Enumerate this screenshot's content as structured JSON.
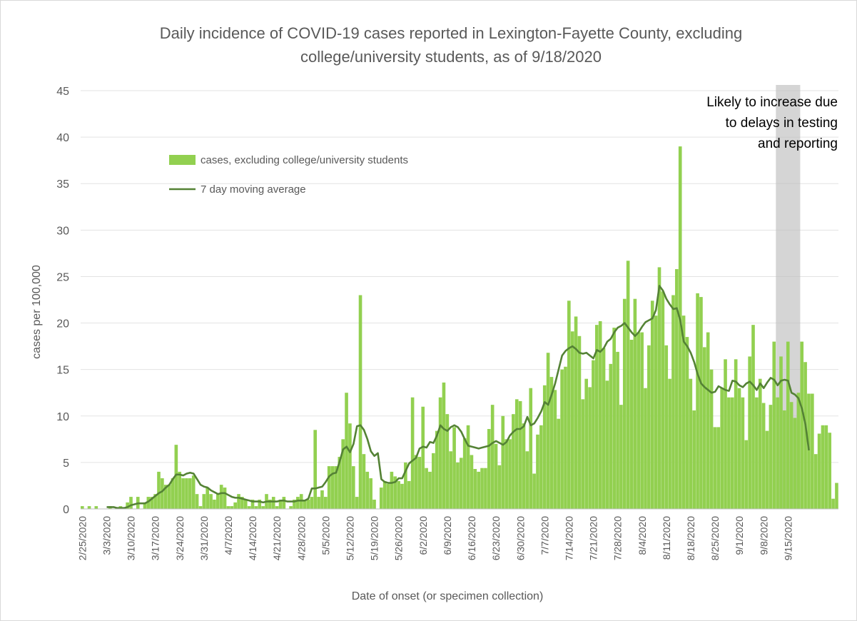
{
  "chart_data": {
    "type": "bar",
    "title_line1": "Daily incidence of COVID-19 cases reported in Lexington-Fayette County, excluding",
    "title_line2": "college/university students, as of 9/18/2020",
    "xlabel": "Date of onset (or specimen collection)",
    "ylabel": "cases per 100,000",
    "ylim": [
      0,
      45
    ],
    "yticks": [
      0,
      5,
      10,
      15,
      20,
      25,
      30,
      35,
      40,
      45
    ],
    "start_date": "2/25/2020",
    "x_ticks": [
      "2/25/2020",
      "3/3/2020",
      "3/10/2020",
      "3/17/2020",
      "3/24/2020",
      "3/31/2020",
      "4/7/2020",
      "4/14/2020",
      "4/21/2020",
      "4/28/2020",
      "5/5/2020",
      "5/12/2020",
      "5/19/2020",
      "5/26/2020",
      "6/2/2020",
      "6/9/2020",
      "6/16/2020",
      "6/23/2020",
      "6/30/2020",
      "7/7/2020",
      "7/14/2020",
      "7/21/2020",
      "7/28/2020",
      "8/4/2020",
      "8/11/2020",
      "8/18/2020",
      "8/25/2020",
      "9/1/2020",
      "9/8/2020",
      "9/15/2020"
    ],
    "legend": {
      "bars": "cases, excluding college/university students",
      "line": "7 day moving average"
    },
    "annotation": [
      "Likely to increase due",
      "to delays in testing",
      "and reporting"
    ],
    "shaded_region": {
      "from": "9/12/2020",
      "to": "9/18/2020"
    },
    "colors": {
      "bars": "#92d050",
      "line": "#548235",
      "shade": "#bfbfbf",
      "text": "#595959",
      "grid": "#d9d9d9"
    },
    "series": [
      {
        "name": "cases, excluding college/university students",
        "values": [
          0.3,
          0,
          0.3,
          0,
          0.3,
          0,
          0,
          0,
          0.3,
          0,
          0,
          0.3,
          0,
          0.7,
          1.3,
          0,
          1.3,
          0,
          0.7,
          1.3,
          1.3,
          1.6,
          4,
          3.3,
          2.6,
          2.6,
          3.3,
          6.9,
          4,
          3.3,
          3.3,
          3.3,
          3.6,
          1.6,
          0.3,
          1.6,
          2.3,
          1.6,
          1,
          1.6,
          2.6,
          2.3,
          0.3,
          0.3,
          0.7,
          1.6,
          1.3,
          1,
          0.3,
          1,
          0.3,
          1,
          0.3,
          1.6,
          1,
          1.3,
          0.3,
          1,
          1.3,
          0,
          0.3,
          1,
          1.3,
          1.6,
          1,
          1,
          1.3,
          8.5,
          1.3,
          2,
          1.3,
          4.6,
          4.6,
          4.6,
          5.6,
          7.5,
          12.5,
          9.2,
          4.6,
          1.3,
          23,
          5.9,
          4,
          3.3,
          1,
          0,
          2.3,
          3,
          2.7,
          4,
          3.5,
          3,
          2.7,
          5,
          3,
          12,
          5.8,
          5.6,
          11,
          4.4,
          4,
          6,
          8.4,
          12,
          13.6,
          10.2,
          6.2,
          8.8,
          5,
          5.5,
          7.6,
          9,
          5.8,
          4.3,
          4,
          4.4,
          4.4,
          8.6,
          11.2,
          7,
          4.7,
          10,
          7.5,
          7.5,
          10.2,
          11.8,
          11.6,
          9.2,
          6.2,
          13,
          3.8,
          8,
          9,
          13.3,
          16.8,
          14.2,
          12.8,
          9.7,
          15,
          15.3,
          22.4,
          19.1,
          20.7,
          18.6,
          11.8,
          14,
          13.1,
          16,
          19.8,
          20.2,
          17.3,
          13.8,
          15.6,
          19.5,
          16.9,
          11.2,
          22.6,
          26.7,
          18.2,
          22.6,
          19,
          19,
          13,
          17.6,
          22.4,
          20.8,
          26,
          23.4,
          17.6,
          14,
          23,
          25.8,
          39,
          20.8,
          18.5,
          14,
          10.6,
          23.2,
          22.8,
          17.4,
          19,
          15,
          8.8,
          8.8,
          13,
          16.1,
          12,
          12,
          16.1,
          13,
          12,
          7.4,
          16.4,
          19.8,
          12,
          14,
          11.4,
          8.4,
          11.2,
          18,
          12,
          16.4,
          10.6,
          18,
          11.5,
          9.8,
          12.5,
          18,
          15.8,
          12.4,
          12.4,
          5.9,
          8.1,
          9,
          9,
          8.2,
          1.1,
          2.8
        ]
      },
      {
        "name": "7 day moving average",
        "values": [
          null,
          null,
          null,
          null,
          null,
          null,
          null,
          0.2,
          0.2,
          0.2,
          0.1,
          0.1,
          0.1,
          0.2,
          0.4,
          0.5,
          0.6,
          0.6,
          0.6,
          0.8,
          1.1,
          1.4,
          1.7,
          1.9,
          2.3,
          2.6,
          3.2,
          3.7,
          3.7,
          3.6,
          3.8,
          3.9,
          3.8,
          3.2,
          2.6,
          2.4,
          2.3,
          2.0,
          1.8,
          1.6,
          1.7,
          1.7,
          1.5,
          1.3,
          1.2,
          1.2,
          1.1,
          1.0,
          0.9,
          0.8,
          0.8,
          0.8,
          0.7,
          0.8,
          0.8,
          0.8,
          0.8,
          0.9,
          0.9,
          0.8,
          0.8,
          0.8,
          0.9,
          0.9,
          0.9,
          1.1,
          2.2,
          2.2,
          2.3,
          2.4,
          2.9,
          3.5,
          3.8,
          3.9,
          5.1,
          6.4,
          6.7,
          6.1,
          7.0,
          8.9,
          9.0,
          8.5,
          7.5,
          6.2,
          5.7,
          6.0,
          3.2,
          2.9,
          2.8,
          2.8,
          2.9,
          3.3,
          3.3,
          4.1,
          4.9,
          5.2,
          5.5,
          6.5,
          6.7,
          6.6,
          7.2,
          7.1,
          7.9,
          9.0,
          8.6,
          8.4,
          8.8,
          9.0,
          8.8,
          8.3,
          7.5,
          6.8,
          6.7,
          6.6,
          6.5,
          6.6,
          6.7,
          6.8,
          7.1,
          7.3,
          7.1,
          6.9,
          7.2,
          7.9,
          8.3,
          8.6,
          8.6,
          8.9,
          9.9,
          9.0,
          9.2,
          9.8,
          10.5,
          11.5,
          11.2,
          12.3,
          13.5,
          15.0,
          16.5,
          17.0,
          17.3,
          17.5,
          17.2,
          16.8,
          16.7,
          16.8,
          16.5,
          16.2,
          17.1,
          16.9,
          17.3,
          18.0,
          18.3,
          19.0,
          19.5,
          19.7,
          20.0,
          19.5,
          19.0,
          18.6,
          19.0,
          19.6,
          20.1,
          20.3,
          20.5,
          21.4,
          24.0,
          23.5,
          22.6,
          22.0,
          21.5,
          21.6,
          20.3,
          18.0,
          17.5,
          16.8,
          15.8,
          14.5,
          13.5,
          13.1,
          12.8,
          12.5,
          12.6,
          13.2,
          13.0,
          12.8,
          12.7,
          13.8,
          13.7,
          13.3,
          13.1,
          13.5,
          13.7,
          13.3,
          12.8,
          13.5,
          13.0,
          13.6,
          14.1,
          13.9,
          13.3,
          13.8,
          13.9,
          13.8,
          12.5,
          12.3,
          11.9,
          10.8,
          9.1,
          6.3
        ]
      }
    ]
  }
}
